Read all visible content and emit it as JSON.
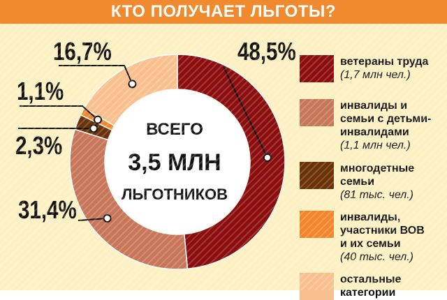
{
  "header": {
    "title": "КТО ПОЛУЧАЕТ ЛЬГОТЫ?"
  },
  "colors": {
    "header_bg": "#f08a2e",
    "panel_bg": "#fdf0c2",
    "veterans": "#8b0d0d",
    "disabled_families": "#c8765a",
    "large_families": "#6b3208",
    "wwii": "#f0852a",
    "others": "#f9c08f"
  },
  "chart_data": {
    "type": "pie",
    "center_text": [
      "ВСЕГО",
      "3,5 МЛН",
      "ЛЬГОТНИКОВ"
    ],
    "slices": [
      {
        "label": "ветераны труда",
        "sublabel": "(1,7 млн чел.)",
        "value": 48.5,
        "display": "48,5%",
        "color": "#8b0d0d"
      },
      {
        "label": "инвалиды и\nсемьи с детьми-\nинвалидами",
        "sublabel": "(1,1 млн чел.)",
        "value": 31.4,
        "display": "31,4%",
        "color": "#c8765a"
      },
      {
        "label": "многодетные\nсемьи",
        "sublabel": "(81 тыс. чел.)",
        "value": 2.3,
        "display": "2,3%",
        "color": "#6b3208"
      },
      {
        "label": "инвалиды,\nучастники ВОВ\nи их семьи",
        "sublabel": "(40 тыс. чел.)",
        "value": 1.1,
        "display": "1,1%",
        "color": "#f0852a"
      },
      {
        "label": "остальные\nкатегории",
        "sublabel": "",
        "value": 16.7,
        "display": "16,7%",
        "color": "#f9c08f"
      }
    ]
  }
}
